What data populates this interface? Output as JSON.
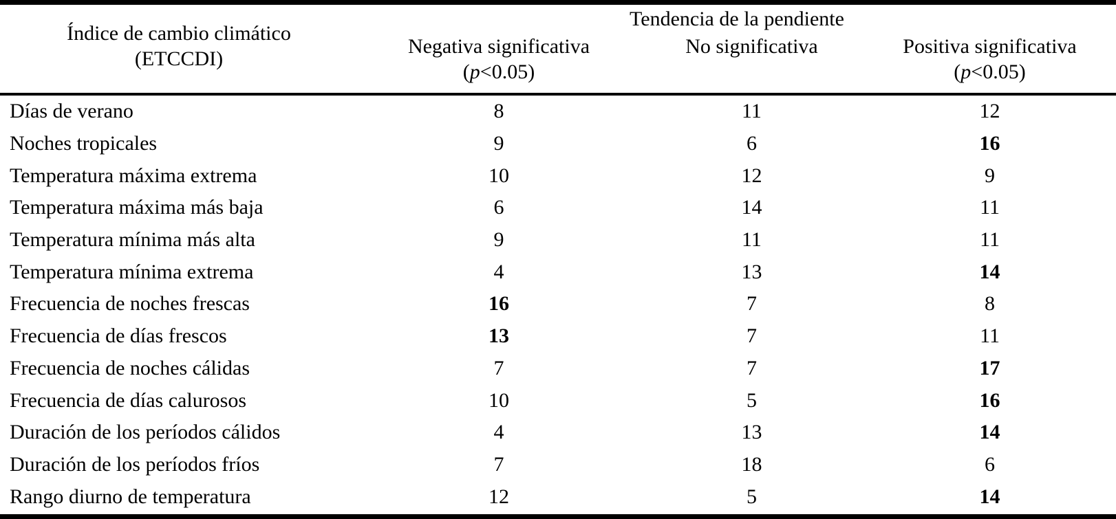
{
  "colors": {
    "text": "#000000",
    "background": "#ffffff",
    "rule": "#000000"
  },
  "table": {
    "spanner": "Tendencia de la pendiente",
    "col1_header": {
      "line1": "Índice de cambio climático",
      "line2": "(ETCCDI)"
    },
    "columns": [
      {
        "line1": "Negativa significativa",
        "line2": "(p<0.05)"
      },
      {
        "line1": "No significativa",
        "line2": ""
      },
      {
        "line1": "Positiva significativa",
        "line2": "(p<0.05)"
      }
    ],
    "rows": [
      {
        "label": "Días de verano",
        "values": [
          {
            "v": "8",
            "bold": false
          },
          {
            "v": "11",
            "bold": false
          },
          {
            "v": "12",
            "bold": false
          }
        ]
      },
      {
        "label": "Noches tropicales",
        "values": [
          {
            "v": "9",
            "bold": false
          },
          {
            "v": "6",
            "bold": false
          },
          {
            "v": "16",
            "bold": true
          }
        ]
      },
      {
        "label": "Temperatura máxima extrema",
        "values": [
          {
            "v": "10",
            "bold": false
          },
          {
            "v": "12",
            "bold": false
          },
          {
            "v": "9",
            "bold": false
          }
        ]
      },
      {
        "label": "Temperatura máxima más baja",
        "values": [
          {
            "v": "6",
            "bold": false
          },
          {
            "v": "14",
            "bold": false
          },
          {
            "v": "11",
            "bold": false
          }
        ]
      },
      {
        "label": "Temperatura mínima más alta",
        "values": [
          {
            "v": "9",
            "bold": false
          },
          {
            "v": "11",
            "bold": false
          },
          {
            "v": "11",
            "bold": false
          }
        ]
      },
      {
        "label": "Temperatura mínima extrema",
        "values": [
          {
            "v": "4",
            "bold": false
          },
          {
            "v": "13",
            "bold": false
          },
          {
            "v": "14",
            "bold": true
          }
        ]
      },
      {
        "label": "Frecuencia de noches frescas",
        "values": [
          {
            "v": "16",
            "bold": true
          },
          {
            "v": "7",
            "bold": false
          },
          {
            "v": "8",
            "bold": false
          }
        ]
      },
      {
        "label": "Frecuencia de días frescos",
        "values": [
          {
            "v": "13",
            "bold": true
          },
          {
            "v": "7",
            "bold": false
          },
          {
            "v": "11",
            "bold": false
          }
        ]
      },
      {
        "label": "Frecuencia de noches cálidas",
        "values": [
          {
            "v": "7",
            "bold": false
          },
          {
            "v": "7",
            "bold": false
          },
          {
            "v": "17",
            "bold": true
          }
        ]
      },
      {
        "label": "Frecuencia de días calurosos",
        "values": [
          {
            "v": "10",
            "bold": false
          },
          {
            "v": "5",
            "bold": false
          },
          {
            "v": "16",
            "bold": true
          }
        ]
      },
      {
        "label": "Duración de los períodos cálidos",
        "values": [
          {
            "v": "4",
            "bold": false
          },
          {
            "v": "13",
            "bold": false
          },
          {
            "v": "14",
            "bold": true
          }
        ]
      },
      {
        "label": "Duración de los períodos fríos",
        "values": [
          {
            "v": "7",
            "bold": false
          },
          {
            "v": "18",
            "bold": false
          },
          {
            "v": "6",
            "bold": false
          }
        ]
      },
      {
        "label": "Rango diurno de temperatura",
        "values": [
          {
            "v": "12",
            "bold": false
          },
          {
            "v": "5",
            "bold": false
          },
          {
            "v": "14",
            "bold": true
          }
        ]
      }
    ]
  }
}
